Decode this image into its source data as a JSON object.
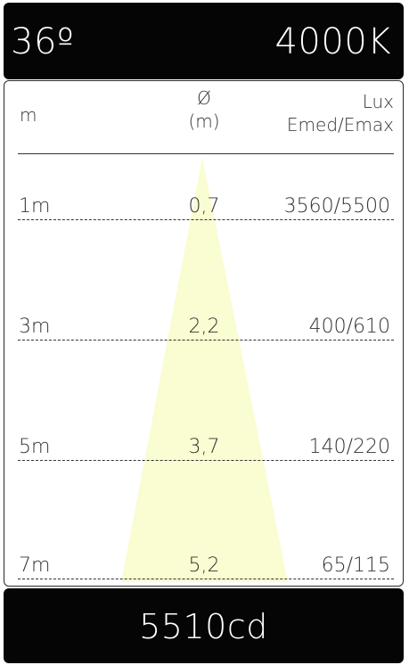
{
  "header": {
    "beam_angle": "36º",
    "color_temperature": "4000K"
  },
  "table": {
    "col_distance": "m",
    "col_diameter_line1": "Ø",
    "col_diameter_line2": "(m)",
    "col_lux_line1": "Lux",
    "col_lux_line2": "Emed/Emax",
    "rows": [
      {
        "distance": "1m",
        "diameter": "0,7",
        "lux": "3560/5500"
      },
      {
        "distance": "3m",
        "diameter": "2,2",
        "lux": "400/610"
      },
      {
        "distance": "5m",
        "diameter": "3,7",
        "lux": "140/220"
      },
      {
        "distance": "7m",
        "diameter": "5,2",
        "lux": "65/115"
      }
    ]
  },
  "footer": {
    "intensity": "5510cd"
  },
  "colors": {
    "bar_background": "#050505",
    "beam_fill": "#fafcd2",
    "text": "#333333"
  }
}
